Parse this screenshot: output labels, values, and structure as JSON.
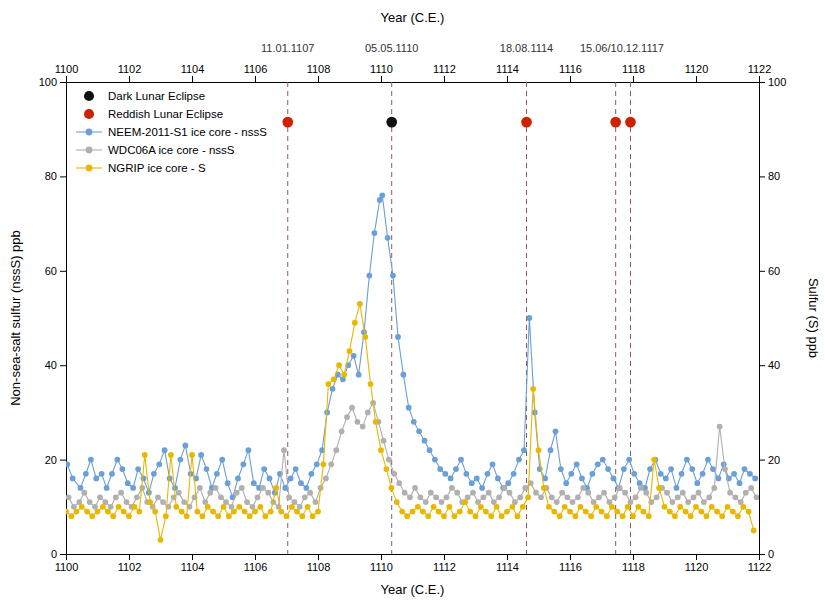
{
  "chart_data": {
    "type": "line",
    "x_label": "Year (C.E.)",
    "x2_label": "Year (C.E.)",
    "y_label": "Non-sea-salt sulfur (nssS) ppb",
    "y2_label": "Sulfur (S) ppb",
    "xlim": [
      1100,
      1122
    ],
    "xticks": [
      1100,
      1102,
      1104,
      1106,
      1108,
      1110,
      1112,
      1114,
      1116,
      1118,
      1120,
      1122
    ],
    "x2lim": [
      1100,
      1122
    ],
    "x2ticks": [
      1100,
      1102,
      1104,
      1106,
      1108,
      1110,
      1112,
      1114,
      1116,
      1118,
      1120,
      1122
    ],
    "ylim": [
      0,
      100
    ],
    "yticks": [
      0,
      20,
      40,
      60,
      80,
      100
    ],
    "y2lim": [
      0,
      100
    ],
    "y2ticks": [
      0,
      20,
      40,
      60,
      80,
      100
    ],
    "grid": false,
    "legend": "upper left",
    "annotations": [
      {
        "type": "vline",
        "x": 1107.04,
        "color": "#8B5A5A",
        "line_style": "dashed"
      },
      {
        "type": "vline",
        "x": 1110.34,
        "color": "#8B5A5A",
        "line_style": "dashed"
      },
      {
        "type": "vline",
        "x": 1114.62,
        "color": "#8B5A5A",
        "line_style": "dashed"
      },
      {
        "type": "vline",
        "x": 1117.45,
        "color": "#8B5A5A",
        "line_style": "dashed"
      },
      {
        "type": "vline",
        "x": 1117.92,
        "color": "#8B5A5A",
        "line_style": "dashed"
      },
      {
        "type": "text",
        "text": "11.01.1107",
        "x": 1107.04,
        "color": "#333333"
      },
      {
        "type": "text",
        "text": "05.05.1110",
        "x": 1110.34,
        "color": "#333333"
      },
      {
        "type": "text",
        "text": "18.08.1114",
        "x": 1114.62,
        "color": "#333333"
      },
      {
        "type": "text",
        "text": "15.06/10.12.1117",
        "x": 1117.65,
        "color": "#333333"
      }
    ],
    "series": [
      {
        "name": "Dark Lunar Eclipse",
        "type": "scatter",
        "marker": "circle",
        "color": "#111111",
        "x": [
          1110.34
        ],
        "values": [
          91.5
        ]
      },
      {
        "name": "Reddish Lunar Eclipse",
        "type": "scatter",
        "marker": "circle",
        "color": "#cc2200",
        "x": [
          1107.04,
          1114.62,
          1117.45,
          1117.92
        ],
        "values": [
          91.5,
          91.5,
          91.5,
          91.5
        ]
      },
      {
        "name": "NEEM-2011-S1 ice core - nssS",
        "type": "line",
        "marker": "circle",
        "color": "#6a9fd8",
        "x": [
          1100.04,
          1100.21,
          1100.46,
          1100.63,
          1100.79,
          1100.96,
          1101.13,
          1101.29,
          1101.46,
          1101.63,
          1101.79,
          1101.96,
          1102.13,
          1102.29,
          1102.46,
          1102.63,
          1102.79,
          1102.96,
          1103.13,
          1103.29,
          1103.46,
          1103.63,
          1103.79,
          1103.96,
          1104.13,
          1104.29,
          1104.46,
          1104.63,
          1104.79,
          1104.96,
          1105.13,
          1105.29,
          1105.46,
          1105.63,
          1105.79,
          1105.96,
          1106.13,
          1106.29,
          1106.46,
          1106.63,
          1106.79,
          1106.96,
          1107.13,
          1107.29,
          1107.46,
          1107.63,
          1107.79,
          1107.96,
          1108.13,
          1108.29,
          1108.46,
          1108.63,
          1108.79,
          1108.96,
          1109.13,
          1109.29,
          1109.46,
          1109.63,
          1109.79,
          1109.96,
          1110.04,
          1110.21,
          1110.38,
          1110.54,
          1110.71,
          1110.88,
          1111.04,
          1111.21,
          1111.38,
          1111.54,
          1111.71,
          1111.88,
          1112.04,
          1112.21,
          1112.38,
          1112.54,
          1112.71,
          1112.88,
          1113.04,
          1113.21,
          1113.38,
          1113.54,
          1113.71,
          1113.88,
          1114.04,
          1114.21,
          1114.38,
          1114.54,
          1114.71,
          1114.88,
          1115.04,
          1115.21,
          1115.38,
          1115.54,
          1115.71,
          1115.88,
          1116.04,
          1116.21,
          1116.38,
          1116.54,
          1116.71,
          1116.88,
          1117.04,
          1117.21,
          1117.38,
          1117.54,
          1117.71,
          1117.88,
          1118.04,
          1118.21,
          1118.38,
          1118.54,
          1118.71,
          1118.88,
          1119.04,
          1119.21,
          1119.38,
          1119.54,
          1119.71,
          1119.88,
          1120.04,
          1120.21,
          1120.38,
          1120.54,
          1120.71,
          1120.88,
          1121.04,
          1121.21,
          1121.38,
          1121.54,
          1121.71,
          1121.88
        ],
        "values": [
          19,
          16,
          14,
          17,
          20,
          16,
          17,
          14,
          17,
          20,
          18,
          15,
          14,
          18,
          16,
          13,
          17,
          19,
          22,
          16,
          14,
          20,
          23,
          17,
          16,
          21,
          18,
          14,
          17,
          20,
          15,
          12,
          16,
          19,
          22,
          15,
          14,
          18,
          16,
          13,
          17,
          14,
          16,
          18,
          15,
          14,
          17,
          19,
          22,
          30,
          35,
          38,
          37,
          40,
          42,
          38,
          47,
          59,
          68,
          75,
          76,
          67,
          59,
          46,
          38,
          31,
          28,
          26,
          24,
          22,
          20,
          18,
          17,
          16,
          18,
          20,
          17,
          15,
          16,
          14,
          17,
          19,
          16,
          14,
          15,
          17,
          20,
          22,
          50,
          30,
          18,
          16,
          22,
          26,
          18,
          15,
          17,
          19,
          16,
          14,
          17,
          19,
          20,
          18,
          16,
          14,
          18,
          20,
          17,
          15,
          14,
          18,
          20,
          17,
          16,
          18,
          14,
          17,
          20,
          18,
          15,
          17,
          20,
          18,
          16,
          19,
          16,
          17,
          15,
          18,
          17,
          16
        ]
      },
      {
        "name": "WDC06A ice core - nssS",
        "type": "line",
        "marker": "circle",
        "color": "#b0b0b0",
        "x": [
          1100.08,
          1100.25,
          1100.42,
          1100.58,
          1100.75,
          1100.92,
          1101.08,
          1101.25,
          1101.42,
          1101.58,
          1101.75,
          1101.92,
          1102.08,
          1102.25,
          1102.42,
          1102.58,
          1102.75,
          1102.92,
          1103.08,
          1103.25,
          1103.42,
          1103.58,
          1103.75,
          1103.92,
          1104.08,
          1104.25,
          1104.42,
          1104.58,
          1104.75,
          1104.92,
          1105.08,
          1105.25,
          1105.42,
          1105.58,
          1105.75,
          1105.92,
          1106.08,
          1106.25,
          1106.42,
          1106.58,
          1106.75,
          1106.92,
          1107.08,
          1107.25,
          1107.42,
          1107.58,
          1107.75,
          1107.92,
          1108.08,
          1108.25,
          1108.42,
          1108.58,
          1108.75,
          1108.92,
          1109.08,
          1109.25,
          1109.42,
          1109.58,
          1109.75,
          1109.92,
          1110.08,
          1110.25,
          1110.42,
          1110.58,
          1110.75,
          1110.92,
          1111.08,
          1111.25,
          1111.42,
          1111.58,
          1111.75,
          1111.92,
          1112.08,
          1112.25,
          1112.42,
          1112.58,
          1112.75,
          1112.92,
          1113.08,
          1113.25,
          1113.42,
          1113.58,
          1113.75,
          1113.92,
          1114.08,
          1114.25,
          1114.42,
          1114.58,
          1114.75,
          1114.92,
          1115.08,
          1115.25,
          1115.42,
          1115.58,
          1115.75,
          1115.92,
          1116.08,
          1116.25,
          1116.42,
          1116.58,
          1116.75,
          1116.92,
          1117.08,
          1117.25,
          1117.42,
          1117.58,
          1117.75,
          1117.92,
          1118.08,
          1118.25,
          1118.42,
          1118.58,
          1118.75,
          1118.92,
          1119.08,
          1119.25,
          1119.42,
          1119.58,
          1119.75,
          1119.92,
          1120.08,
          1120.25,
          1120.42,
          1120.58,
          1120.75,
          1120.92,
          1121.08,
          1121.25,
          1121.42,
          1121.58,
          1121.75,
          1121.92
        ],
        "values": [
          12,
          10,
          11,
          13,
          11,
          10,
          12,
          11,
          10,
          12,
          13,
          11,
          10,
          12,
          14,
          11,
          10,
          12,
          11,
          10,
          12,
          13,
          11,
          10,
          12,
          14,
          11,
          13,
          14,
          12,
          11,
          10,
          13,
          14,
          11,
          10,
          12,
          14,
          13,
          11,
          10,
          22,
          12,
          11,
          10,
          12,
          13,
          11,
          14,
          16,
          19,
          22,
          26,
          29,
          31,
          28,
          27,
          30,
          32,
          28,
          24,
          20,
          17,
          15,
          13,
          12,
          14,
          12,
          11,
          13,
          12,
          11,
          12,
          14,
          13,
          11,
          12,
          13,
          11,
          12,
          13,
          11,
          12,
          14,
          13,
          11,
          12,
          14,
          15,
          13,
          12,
          14,
          12,
          11,
          13,
          12,
          11,
          12,
          14,
          13,
          11,
          12,
          13,
          11,
          12,
          14,
          13,
          11,
          12,
          14,
          13,
          11,
          12,
          14,
          13,
          11,
          12,
          13,
          11,
          12,
          13,
          11,
          12,
          14,
          27,
          18,
          13,
          12,
          11,
          13,
          14,
          12
        ]
      },
      {
        "name": "NGRIP ice core - S",
        "type": "line",
        "marker": "circle",
        "color": "#e8b800",
        "axis": "y2",
        "x": [
          1100.0,
          1100.17,
          1100.33,
          1100.5,
          1100.67,
          1100.83,
          1101.0,
          1101.17,
          1101.33,
          1101.5,
          1101.67,
          1101.83,
          1102.0,
          1102.17,
          1102.33,
          1102.5,
          1102.67,
          1102.83,
          1103.0,
          1103.17,
          1103.33,
          1103.5,
          1103.67,
          1103.83,
          1104.0,
          1104.17,
          1104.33,
          1104.5,
          1104.67,
          1104.83,
          1105.0,
          1105.17,
          1105.33,
          1105.5,
          1105.67,
          1105.83,
          1106.0,
          1106.17,
          1106.33,
          1106.5,
          1106.67,
          1106.83,
          1107.0,
          1107.17,
          1107.33,
          1107.5,
          1107.67,
          1107.83,
          1108.0,
          1108.17,
          1108.33,
          1108.5,
          1108.67,
          1108.83,
          1109.0,
          1109.17,
          1109.33,
          1109.5,
          1109.67,
          1109.83,
          1110.0,
          1110.17,
          1110.33,
          1110.5,
          1110.67,
          1110.83,
          1111.0,
          1111.17,
          1111.33,
          1111.5,
          1111.67,
          1111.83,
          1112.0,
          1112.17,
          1112.33,
          1112.5,
          1112.67,
          1112.83,
          1113.0,
          1113.17,
          1113.33,
          1113.5,
          1113.67,
          1113.83,
          1114.0,
          1114.17,
          1114.33,
          1114.5,
          1114.67,
          1114.83,
          1115.0,
          1115.17,
          1115.33,
          1115.5,
          1115.67,
          1115.83,
          1116.0,
          1116.17,
          1116.33,
          1116.5,
          1116.67,
          1116.83,
          1117.0,
          1117.17,
          1117.33,
          1117.5,
          1117.67,
          1117.83,
          1118.0,
          1118.17,
          1118.33,
          1118.5,
          1118.67,
          1118.83,
          1119.0,
          1119.17,
          1119.33,
          1119.5,
          1119.67,
          1119.83,
          1120.0,
          1120.17,
          1120.33,
          1120.5,
          1120.67,
          1120.83,
          1121.0,
          1121.17,
          1121.33,
          1121.5,
          1121.67,
          1121.83
        ],
        "values": [
          9,
          8,
          9,
          10,
          9,
          8,
          9,
          10,
          9,
          8,
          10,
          9,
          8,
          10,
          9,
          21,
          11,
          9,
          3,
          8,
          21,
          10,
          9,
          8,
          21,
          9,
          8,
          10,
          9,
          8,
          10,
          8,
          9,
          10,
          9,
          8,
          9,
          10,
          8,
          9,
          14,
          9,
          8,
          10,
          9,
          8,
          10,
          8,
          9,
          19,
          36,
          37,
          40,
          38,
          43,
          49,
          53,
          46,
          36,
          28,
          22,
          18,
          14,
          11,
          9,
          8,
          9,
          10,
          9,
          8,
          10,
          9,
          8,
          10,
          8,
          9,
          11,
          9,
          8,
          10,
          9,
          8,
          10,
          8,
          9,
          10,
          8,
          10,
          12,
          35,
          22,
          14,
          10,
          9,
          8,
          10,
          9,
          8,
          10,
          9,
          8,
          10,
          9,
          8,
          10,
          9,
          8,
          10,
          8,
          10,
          9,
          8,
          20,
          14,
          10,
          9,
          8,
          10,
          9,
          8,
          10,
          9,
          8,
          10,
          9,
          8,
          10,
          9,
          8,
          10,
          9,
          5
        ]
      }
    ]
  }
}
